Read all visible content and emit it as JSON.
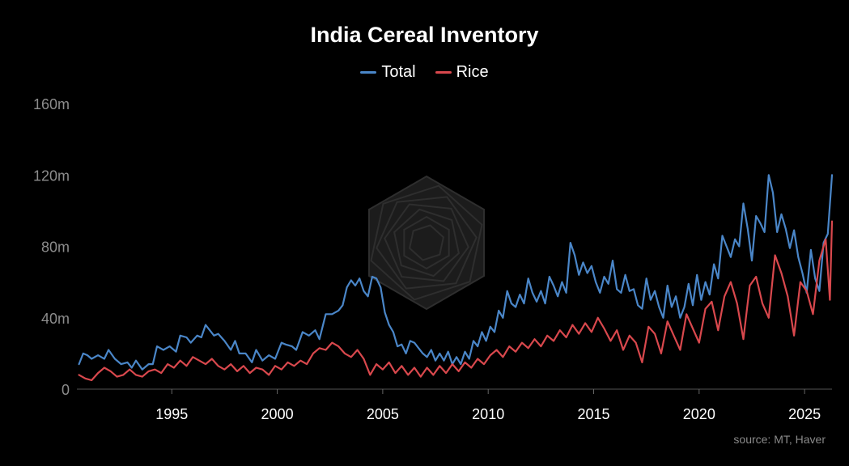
{
  "chart_data": {
    "type": "line",
    "title": "India Cereal Inventory",
    "source": "source: MT, Haver",
    "xlabel": "",
    "ylabel": "",
    "x_range": [
      1990.5,
      2026.3
    ],
    "ylim": [
      0,
      160
    ],
    "y_ticks": [
      {
        "value": 0,
        "label": "0"
      },
      {
        "value": 40,
        "label": "40m"
      },
      {
        "value": 80,
        "label": "80m"
      },
      {
        "value": 120,
        "label": "120m"
      },
      {
        "value": 160,
        "label": "160m"
      }
    ],
    "x_ticks": [
      {
        "value": 1995,
        "label": "1995"
      },
      {
        "value": 2000,
        "label": "2000"
      },
      {
        "value": 2005,
        "label": "2005"
      },
      {
        "value": 2010,
        "label": "2010"
      },
      {
        "value": 2015,
        "label": "2015"
      },
      {
        "value": 2020,
        "label": "2020"
      },
      {
        "value": 2025,
        "label": "2025"
      }
    ],
    "legend_position": "top-center",
    "series": [
      {
        "name": "Total",
        "color": "#4a86c8",
        "points": [
          [
            1990.6,
            14
          ],
          [
            1990.8,
            20
          ],
          [
            1991.0,
            19
          ],
          [
            1991.2,
            17
          ],
          [
            1991.5,
            19
          ],
          [
            1991.8,
            17
          ],
          [
            1992.0,
            22
          ],
          [
            1992.3,
            17
          ],
          [
            1992.6,
            14
          ],
          [
            1992.9,
            15
          ],
          [
            1993.1,
            12
          ],
          [
            1993.3,
            16
          ],
          [
            1993.6,
            11
          ],
          [
            1993.9,
            14
          ],
          [
            1994.1,
            14
          ],
          [
            1994.3,
            24
          ],
          [
            1994.6,
            22
          ],
          [
            1994.9,
            24
          ],
          [
            1995.2,
            21
          ],
          [
            1995.4,
            30
          ],
          [
            1995.7,
            29
          ],
          [
            1995.9,
            26
          ],
          [
            1996.2,
            30
          ],
          [
            1996.4,
            29
          ],
          [
            1996.6,
            36
          ],
          [
            1996.8,
            33
          ],
          [
            1997.0,
            30
          ],
          [
            1997.2,
            31
          ],
          [
            1997.5,
            27
          ],
          [
            1997.8,
            22
          ],
          [
            1998.0,
            27
          ],
          [
            1998.2,
            20
          ],
          [
            1998.5,
            20
          ],
          [
            1998.8,
            15
          ],
          [
            1999.0,
            22
          ],
          [
            1999.3,
            16
          ],
          [
            1999.6,
            19
          ],
          [
            1999.9,
            17
          ],
          [
            2000.2,
            26
          ],
          [
            2000.4,
            25
          ],
          [
            2000.7,
            24
          ],
          [
            2000.9,
            22
          ],
          [
            2001.2,
            32
          ],
          [
            2001.5,
            30
          ],
          [
            2001.8,
            33
          ],
          [
            2002.0,
            28
          ],
          [
            2002.3,
            42
          ],
          [
            2002.6,
            42
          ],
          [
            2002.9,
            44
          ],
          [
            2003.1,
            47
          ],
          [
            2003.3,
            57
          ],
          [
            2003.5,
            61
          ],
          [
            2003.7,
            58
          ],
          [
            2003.9,
            62
          ],
          [
            2004.1,
            55
          ],
          [
            2004.3,
            52
          ],
          [
            2004.5,
            63
          ],
          [
            2004.7,
            62
          ],
          [
            2004.9,
            57
          ],
          [
            2005.1,
            43
          ],
          [
            2005.3,
            36
          ],
          [
            2005.5,
            32
          ],
          [
            2005.7,
            24
          ],
          [
            2005.9,
            25
          ],
          [
            2006.1,
            20
          ],
          [
            2006.3,
            27
          ],
          [
            2006.5,
            26
          ],
          [
            2006.7,
            23
          ],
          [
            2006.9,
            20
          ],
          [
            2007.1,
            18
          ],
          [
            2007.3,
            22
          ],
          [
            2007.5,
            16
          ],
          [
            2007.7,
            20
          ],
          [
            2007.9,
            16
          ],
          [
            2008.1,
            21
          ],
          [
            2008.3,
            14
          ],
          [
            2008.5,
            18
          ],
          [
            2008.7,
            14
          ],
          [
            2008.9,
            21
          ],
          [
            2009.1,
            17
          ],
          [
            2009.3,
            27
          ],
          [
            2009.5,
            24
          ],
          [
            2009.7,
            32
          ],
          [
            2009.9,
            27
          ],
          [
            2010.1,
            35
          ],
          [
            2010.3,
            32
          ],
          [
            2010.5,
            44
          ],
          [
            2010.7,
            40
          ],
          [
            2010.9,
            55
          ],
          [
            2011.1,
            48
          ],
          [
            2011.3,
            46
          ],
          [
            2011.5,
            53
          ],
          [
            2011.7,
            48
          ],
          [
            2011.9,
            62
          ],
          [
            2012.1,
            54
          ],
          [
            2012.3,
            49
          ],
          [
            2012.5,
            55
          ],
          [
            2012.7,
            48
          ],
          [
            2012.9,
            63
          ],
          [
            2013.1,
            58
          ],
          [
            2013.3,
            52
          ],
          [
            2013.5,
            60
          ],
          [
            2013.7,
            54
          ],
          [
            2013.9,
            82
          ],
          [
            2014.1,
            75
          ],
          [
            2014.3,
            64
          ],
          [
            2014.5,
            71
          ],
          [
            2014.7,
            65
          ],
          [
            2014.9,
            69
          ],
          [
            2015.1,
            60
          ],
          [
            2015.3,
            54
          ],
          [
            2015.5,
            63
          ],
          [
            2015.7,
            59
          ],
          [
            2015.9,
            72
          ],
          [
            2016.1,
            56
          ],
          [
            2016.3,
            54
          ],
          [
            2016.5,
            64
          ],
          [
            2016.7,
            55
          ],
          [
            2016.9,
            56
          ],
          [
            2017.1,
            47
          ],
          [
            2017.3,
            45
          ],
          [
            2017.5,
            62
          ],
          [
            2017.7,
            50
          ],
          [
            2017.9,
            55
          ],
          [
            2018.1,
            46
          ],
          [
            2018.3,
            40
          ],
          [
            2018.5,
            58
          ],
          [
            2018.7,
            46
          ],
          [
            2018.9,
            52
          ],
          [
            2019.1,
            40
          ],
          [
            2019.3,
            46
          ],
          [
            2019.5,
            59
          ],
          [
            2019.7,
            47
          ],
          [
            2019.9,
            64
          ],
          [
            2020.1,
            50
          ],
          [
            2020.3,
            60
          ],
          [
            2020.5,
            53
          ],
          [
            2020.7,
            70
          ],
          [
            2020.9,
            62
          ],
          [
            2021.1,
            86
          ],
          [
            2021.3,
            80
          ],
          [
            2021.5,
            74
          ],
          [
            2021.7,
            84
          ],
          [
            2021.9,
            80
          ],
          [
            2022.1,
            104
          ],
          [
            2022.3,
            90
          ],
          [
            2022.5,
            72
          ],
          [
            2022.7,
            97
          ],
          [
            2022.9,
            93
          ],
          [
            2023.1,
            88
          ],
          [
            2023.3,
            120
          ],
          [
            2023.5,
            110
          ],
          [
            2023.7,
            88
          ],
          [
            2023.9,
            98
          ],
          [
            2024.1,
            90
          ],
          [
            2024.3,
            79
          ],
          [
            2024.5,
            89
          ],
          [
            2024.7,
            74
          ],
          [
            2024.9,
            65
          ],
          [
            2025.1,
            54
          ],
          [
            2025.3,
            78
          ],
          [
            2025.5,
            62
          ],
          [
            2025.7,
            55
          ],
          [
            2025.9,
            82
          ],
          [
            2026.1,
            87
          ],
          [
            2026.3,
            120
          ]
        ]
      },
      {
        "name": "Rice",
        "color": "#d9484d",
        "points": [
          [
            1990.6,
            8
          ],
          [
            1990.9,
            6
          ],
          [
            1991.2,
            5
          ],
          [
            1991.5,
            9
          ],
          [
            1991.8,
            12
          ],
          [
            1992.1,
            10
          ],
          [
            1992.4,
            7
          ],
          [
            1992.7,
            8
          ],
          [
            1993.0,
            11
          ],
          [
            1993.3,
            8
          ],
          [
            1993.6,
            7
          ],
          [
            1993.9,
            10
          ],
          [
            1994.2,
            11
          ],
          [
            1994.5,
            9
          ],
          [
            1994.8,
            14
          ],
          [
            1995.1,
            12
          ],
          [
            1995.4,
            16
          ],
          [
            1995.7,
            13
          ],
          [
            1996.0,
            18
          ],
          [
            1996.3,
            16
          ],
          [
            1996.6,
            14
          ],
          [
            1996.9,
            17
          ],
          [
            1997.2,
            13
          ],
          [
            1997.5,
            11
          ],
          [
            1997.8,
            14
          ],
          [
            1998.1,
            10
          ],
          [
            1998.4,
            13
          ],
          [
            1998.7,
            9
          ],
          [
            1999.0,
            12
          ],
          [
            1999.3,
            11
          ],
          [
            1999.6,
            8
          ],
          [
            1999.9,
            13
          ],
          [
            2000.2,
            11
          ],
          [
            2000.5,
            15
          ],
          [
            2000.8,
            13
          ],
          [
            2001.1,
            16
          ],
          [
            2001.4,
            14
          ],
          [
            2001.7,
            20
          ],
          [
            2002.0,
            23
          ],
          [
            2002.3,
            22
          ],
          [
            2002.6,
            26
          ],
          [
            2002.9,
            24
          ],
          [
            2003.2,
            20
          ],
          [
            2003.5,
            18
          ],
          [
            2003.8,
            22
          ],
          [
            2004.1,
            17
          ],
          [
            2004.4,
            8
          ],
          [
            2004.7,
            14
          ],
          [
            2005.0,
            11
          ],
          [
            2005.3,
            15
          ],
          [
            2005.6,
            9
          ],
          [
            2005.9,
            13
          ],
          [
            2006.2,
            8
          ],
          [
            2006.5,
            12
          ],
          [
            2006.8,
            7
          ],
          [
            2007.1,
            12
          ],
          [
            2007.4,
            8
          ],
          [
            2007.7,
            13
          ],
          [
            2008.0,
            9
          ],
          [
            2008.3,
            14
          ],
          [
            2008.6,
            10
          ],
          [
            2008.9,
            15
          ],
          [
            2009.2,
            12
          ],
          [
            2009.5,
            17
          ],
          [
            2009.8,
            14
          ],
          [
            2010.1,
            19
          ],
          [
            2010.4,
            22
          ],
          [
            2010.7,
            18
          ],
          [
            2011.0,
            24
          ],
          [
            2011.3,
            21
          ],
          [
            2011.6,
            26
          ],
          [
            2011.9,
            23
          ],
          [
            2012.2,
            28
          ],
          [
            2012.5,
            24
          ],
          [
            2012.8,
            30
          ],
          [
            2013.1,
            27
          ],
          [
            2013.4,
            33
          ],
          [
            2013.7,
            29
          ],
          [
            2014.0,
            36
          ],
          [
            2014.3,
            31
          ],
          [
            2014.6,
            37
          ],
          [
            2014.9,
            32
          ],
          [
            2015.2,
            40
          ],
          [
            2015.5,
            34
          ],
          [
            2015.8,
            27
          ],
          [
            2016.1,
            33
          ],
          [
            2016.4,
            22
          ],
          [
            2016.7,
            30
          ],
          [
            2017.0,
            26
          ],
          [
            2017.3,
            15
          ],
          [
            2017.6,
            35
          ],
          [
            2017.9,
            31
          ],
          [
            2018.2,
            20
          ],
          [
            2018.5,
            38
          ],
          [
            2018.8,
            30
          ],
          [
            2019.1,
            22
          ],
          [
            2019.4,
            42
          ],
          [
            2019.7,
            34
          ],
          [
            2020.0,
            26
          ],
          [
            2020.3,
            45
          ],
          [
            2020.6,
            49
          ],
          [
            2020.9,
            33
          ],
          [
            2021.2,
            52
          ],
          [
            2021.5,
            60
          ],
          [
            2021.8,
            48
          ],
          [
            2022.1,
            28
          ],
          [
            2022.4,
            58
          ],
          [
            2022.7,
            63
          ],
          [
            2023.0,
            48
          ],
          [
            2023.3,
            40
          ],
          [
            2023.6,
            75
          ],
          [
            2023.9,
            65
          ],
          [
            2024.2,
            52
          ],
          [
            2024.5,
            30
          ],
          [
            2024.8,
            60
          ],
          [
            2025.1,
            55
          ],
          [
            2025.4,
            42
          ],
          [
            2025.7,
            72
          ],
          [
            2026.0,
            84
          ],
          [
            2026.2,
            50
          ],
          [
            2026.3,
            94
          ]
        ]
      }
    ]
  }
}
